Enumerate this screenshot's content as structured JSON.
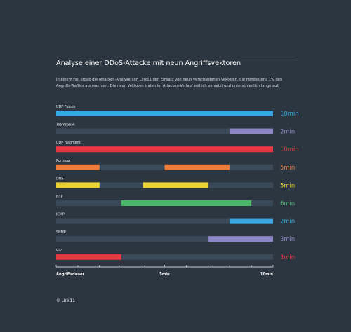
{
  "title": "Analyse einer DDoS-Attacke mit neun Angriffsvektoren",
  "description": "In einem Fall ergab die Attacken-Analyse von Link11 den Einsatz von neun verschiedenen Vektoren, die mindestens 1% des Angriffs-Traffics ausmachten. Die neun Vektoren traten im Attacken-Verlauf zeitlich versetzt und unterschiedlich lange auf.",
  "footer": "© Link11",
  "colors": {
    "background": "#2c3640",
    "track": "#3b4a58",
    "blue": "#3aa8e0",
    "purple": "#8d86c7",
    "red": "#e6383e",
    "orange": "#eb7e3c",
    "yellow": "#e8d02f",
    "green": "#4bb56a"
  },
  "chart_data": {
    "type": "bar",
    "orientation": "horizontal-timeline",
    "xlabel": "Angriffsdauer",
    "xlim": [
      0,
      10
    ],
    "x_ticks": [
      {
        "value": 0,
        "label": "Angriffsdauer"
      },
      {
        "value": 5,
        "label": "5min"
      },
      {
        "value": 10,
        "label": "10min"
      }
    ],
    "series": [
      {
        "name": "UDP Floods",
        "duration": "10min",
        "color": "#3aa8e0",
        "segments": [
          [
            0,
            10
          ]
        ]
      },
      {
        "name": "Teamspeak",
        "duration": "2min",
        "color": "#8d86c7",
        "segments": [
          [
            8,
            10
          ]
        ]
      },
      {
        "name": "UDP Fragment",
        "duration": "10min",
        "color": "#e6383e",
        "segments": [
          [
            0,
            10
          ]
        ]
      },
      {
        "name": "Portmap",
        "duration": "5min",
        "color": "#eb7e3c",
        "segments": [
          [
            0,
            2
          ],
          [
            5,
            8
          ]
        ]
      },
      {
        "name": "DNS",
        "duration": "5min",
        "color": "#e8d02f",
        "segments": [
          [
            0,
            2
          ],
          [
            4,
            7
          ]
        ]
      },
      {
        "name": "NTP",
        "duration": "6min",
        "color": "#4bb56a",
        "segments": [
          [
            3,
            9
          ]
        ]
      },
      {
        "name": "ICMP",
        "duration": "2min",
        "color": "#3aa8e0",
        "segments": [
          [
            8,
            10
          ]
        ]
      },
      {
        "name": "SNMP",
        "duration": "3min",
        "color": "#8d86c7",
        "segments": [
          [
            7,
            10
          ]
        ]
      },
      {
        "name": "RIP",
        "duration": "3min",
        "color": "#e6383e",
        "segments": [
          [
            0,
            3
          ]
        ]
      }
    ]
  }
}
